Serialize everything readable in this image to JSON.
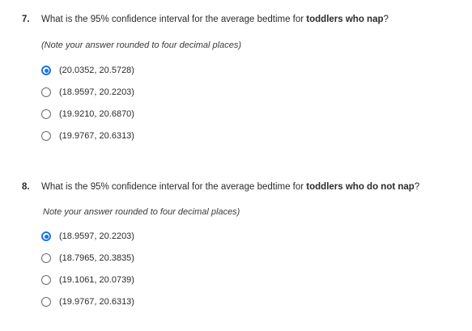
{
  "questions": [
    {
      "number": "7.",
      "text_before": "What is the 95% confidence interval for the average bedtime for ",
      "text_bold": "toddlers who nap",
      "text_after": "?",
      "note": "(Note your answer rounded to four decimal places)",
      "options": [
        {
          "label": "(20.0352, 20.5728)",
          "selected": true
        },
        {
          "label": "(18.9597, 20.2203)",
          "selected": false
        },
        {
          "label": "(19.9210, 20.6870)",
          "selected": false
        },
        {
          "label": "(19.9767, 20.6313)",
          "selected": false
        }
      ]
    },
    {
      "number": "8.",
      "text_before": "What is the 95% confidence interval for the average bedtime for ",
      "text_bold": "toddlers who do not nap",
      "text_after": "?",
      "note": "Note your answer rounded to four decimal places)",
      "options": [
        {
          "label": "(18.9597, 20.2203)",
          "selected": true
        },
        {
          "label": "(18.7965, 20.3835)",
          "selected": false
        },
        {
          "label": "(19.1061, 20.0739)",
          "selected": false
        },
        {
          "label": "(19.9767, 20.6313)",
          "selected": false
        }
      ]
    }
  ],
  "colors": {
    "accent": "#1a73e8",
    "text": "#2b2b2b",
    "radio_border": "#6d6d6d"
  }
}
